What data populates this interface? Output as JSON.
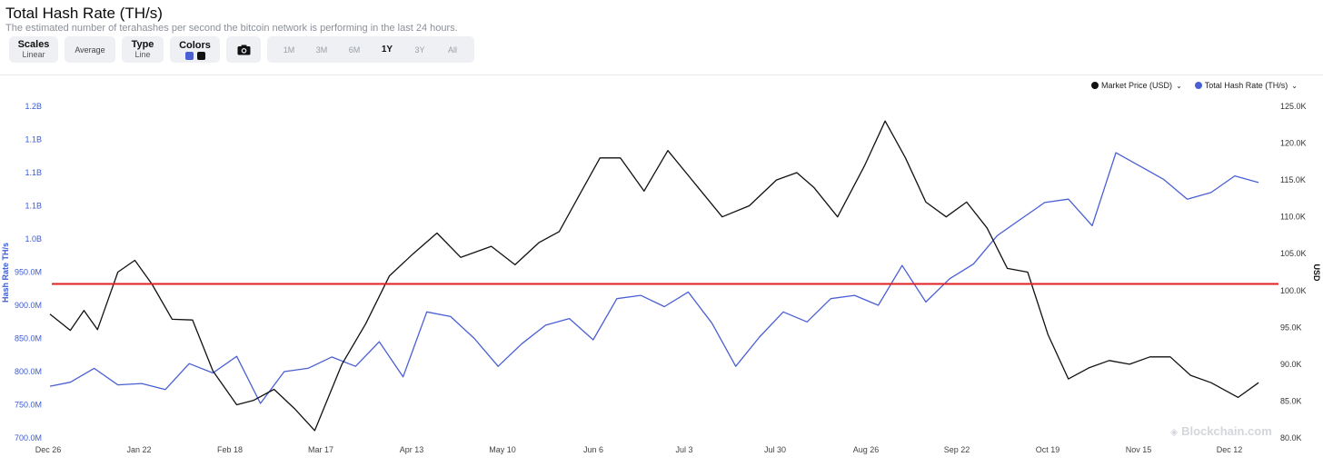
{
  "header": {
    "title": "Total Hash Rate (TH/s)",
    "subtitle": "The estimated number of terahashes per second the bitcoin network is performing in the last 24 hours."
  },
  "toolbar": {
    "scales_label": "Scales",
    "scales_value": "Linear",
    "average_label": "Average",
    "type_label": "Type",
    "type_value": "Line",
    "colors_label": "Colors",
    "color_swatches": [
      "#4a5fd4",
      "#111111"
    ],
    "camera_icon": "camera-icon",
    "ranges": [
      "1M",
      "3M",
      "6M",
      "1Y",
      "3Y",
      "All"
    ],
    "active_range": "1Y"
  },
  "legend": {
    "items": [
      {
        "label": "Market Price (USD)",
        "color": "#111111"
      },
      {
        "label": "Total Hash Rate (TH/s)",
        "color": "#4a5fd4"
      }
    ]
  },
  "watermark": "Blockchain.com",
  "chart_data": {
    "type": "line",
    "x_ticks": [
      "Dec 26",
      "Jan 22",
      "Feb 18",
      "Mar 17",
      "Apr 13",
      "May 10",
      "Jun 6",
      "Jul 3",
      "Jul 30",
      "Aug 26",
      "Sep 22",
      "Oct 19",
      "Nov 15",
      "Dec 12"
    ],
    "y_left": {
      "label": "Hash Rate TH/s",
      "ticks": [
        "700.0M",
        "750.0M",
        "800.0M",
        "850.0M",
        "900.0M",
        "950.0M",
        "1.0B",
        "1.1B",
        "1.1B",
        "1.1B",
        "1.2B"
      ],
      "range": [
        700,
        1200
      ],
      "unit": "M TH/s",
      "color": "#3b5bd6"
    },
    "y_right": {
      "label": "USD",
      "ticks": [
        "80.0K",
        "85.0K",
        "90.0K",
        "95.0K",
        "100.0K",
        "105.0K",
        "110.0K",
        "115.0K",
        "120.0K",
        "125.0K"
      ],
      "range": [
        80,
        125
      ],
      "unit": "K USD"
    },
    "reference_line": {
      "axis": "right",
      "value": 100.9,
      "color": "#e02020"
    },
    "series": [
      {
        "name": "Total Hash Rate (TH/s)",
        "axis": "left",
        "color": "#4a5fd4",
        "x_days": [
          0,
          6,
          13,
          20,
          27,
          34,
          41,
          48,
          55,
          62,
          69,
          76,
          83,
          90,
          97,
          104,
          111,
          118,
          125,
          132,
          139,
          146,
          153,
          160,
          167,
          174,
          181,
          188,
          195,
          202,
          209,
          216,
          223,
          230,
          237,
          244,
          251,
          258,
          265,
          272,
          279,
          286,
          293,
          300,
          307,
          314,
          321,
          328,
          335,
          342,
          349,
          356
        ],
        "values": [
          778,
          784,
          805,
          780,
          782,
          773,
          812,
          798,
          823,
          752,
          800,
          805,
          822,
          808,
          845,
          792,
          890,
          883,
          850,
          808,
          842,
          870,
          880,
          848,
          910,
          915,
          898,
          920,
          873,
          808,
          852,
          890,
          875,
          910,
          915,
          900,
          960,
          905,
          940,
          962,
          1005,
          1030,
          1055,
          1060,
          1020,
          1130,
          1110,
          1090,
          1060,
          1070,
          1095,
          1085
        ]
      },
      {
        "name": "Market Price (USD)",
        "axis": "right",
        "color": "#111111",
        "x_days": [
          0,
          6,
          10,
          14,
          20,
          25,
          30,
          36,
          42,
          48,
          55,
          60,
          66,
          72,
          78,
          86,
          93,
          100,
          107,
          114,
          121,
          130,
          137,
          144,
          150,
          156,
          162,
          168,
          175,
          182,
          190,
          198,
          206,
          214,
          220,
          225,
          232,
          240,
          246,
          252,
          258,
          264,
          270,
          276,
          282,
          288,
          294,
          300,
          306,
          312,
          318,
          324,
          330,
          336,
          342,
          350,
          356
        ],
        "values": [
          96.8,
          94.6,
          97.3,
          94.7,
          102.5,
          104.1,
          100.9,
          96.1,
          96.0,
          89.1,
          84.5,
          85.1,
          86.6,
          84.0,
          81.0,
          90.0,
          95.5,
          102.0,
          105.0,
          107.8,
          104.5,
          106.0,
          103.5,
          106.5,
          108.0,
          113.0,
          118.0,
          118.0,
          113.5,
          119.0,
          114.5,
          110.0,
          111.5,
          115.0,
          116.0,
          114.0,
          110.0,
          117.0,
          123.0,
          118.0,
          112.0,
          110.0,
          112.0,
          108.5,
          103.0,
          102.5,
          94.0,
          88.0,
          89.5,
          90.5,
          90.0,
          91.0,
          91.0,
          88.5,
          87.5,
          85.5,
          87.5
        ]
      }
    ],
    "grid": false,
    "legend_position": "top-right"
  }
}
